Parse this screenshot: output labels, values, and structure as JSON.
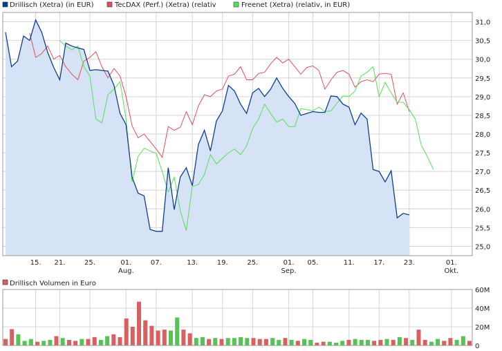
{
  "colors": {
    "drillisch": "#0b3d91",
    "drillisch_fill": "#d6e3f7",
    "tecdax": "#e0505a",
    "freenet": "#55e055",
    "vol_up": "#55c455",
    "vol_down": "#d86060",
    "grid": "#d4d4d4",
    "frame": "#999999"
  },
  "legend": {
    "drillisch": "Drillisch (Xetra) (in EUR)",
    "tecdax": "TecDAX (Perf.) (Xetra) (relativ",
    "freenet": "Freenet (Xetra) (relativ, in EUR)",
    "volume": "Drillisch Volumen in Euro"
  },
  "chart_data": [
    {
      "type": "line",
      "x_ticks": [
        "15.",
        "21.",
        "25.",
        "01.",
        "07.",
        "13.",
        "19.",
        "25.",
        "01.",
        "05.",
        "11.",
        "17.",
        "23.",
        "01."
      ],
      "x_tick_index": [
        5,
        9,
        14,
        20,
        25,
        31,
        36,
        41,
        47,
        51,
        57,
        62,
        67,
        74
      ],
      "month_labels": [
        {
          "label": "Aug.",
          "index": 20
        },
        {
          "label": "Sep.",
          "index": 47
        },
        {
          "label": "Okt.",
          "index": 74
        }
      ],
      "y_ticks": [
        "25,0",
        "25,5",
        "26,0",
        "26,5",
        "27,0",
        "27,5",
        "28,0",
        "28,5",
        "29,0",
        "29,5",
        "30,0",
        "30,5",
        "31,0"
      ],
      "y_tick_values": [
        25.0,
        25.5,
        26.0,
        26.5,
        27.0,
        27.5,
        28.0,
        28.5,
        29.0,
        29.5,
        30.0,
        30.5,
        31.0
      ],
      "ylim": [
        24.75,
        31.25
      ],
      "x_count": 78,
      "grid": true,
      "legend_position": "top",
      "series": [
        {
          "key": "drillisch",
          "name": "Drillisch (Xetra) (in EUR)",
          "values": [
            30.72,
            29.8,
            29.95,
            30.62,
            30.5,
            31.05,
            30.72,
            30.18,
            29.78,
            29.45,
            30.43,
            30.35,
            30.3,
            30.26,
            29.7,
            29.72,
            29.7,
            29.68,
            29.3,
            28.55,
            28.25,
            26.85,
            26.42,
            26.35,
            25.45,
            25.4,
            25.4,
            27.1,
            25.98,
            26.85,
            27.1,
            26.62,
            27.72,
            28.1,
            27.55,
            28.35,
            28.62,
            29.3,
            29.15,
            28.8,
            28.55,
            29.1,
            29.22,
            29.0,
            29.2,
            29.5,
            29.22,
            29.0,
            28.82,
            28.5,
            28.55,
            28.6,
            28.58,
            28.58,
            29.02,
            29.0,
            28.8,
            28.72,
            28.25,
            28.56,
            28.4,
            27.05,
            27.0,
            26.72,
            27.02,
            25.76,
            25.88,
            25.84
          ],
          "x_start": 0
        },
        {
          "key": "tecdax",
          "name": "TecDAX (Perf.) (Xetra) (relativ",
          "values": [
            30.7,
            30.05,
            30.15,
            30.35,
            30.0,
            30.1,
            29.8,
            29.6,
            29.45,
            29.95,
            30.05,
            30.2,
            29.8,
            29.5,
            29.75,
            29.55,
            29.0,
            28.22,
            27.9,
            28.0,
            27.8,
            27.6,
            27.38,
            28.2,
            28.1,
            28.18,
            28.6,
            28.25,
            28.75,
            29.05,
            29.0,
            29.15,
            29.2,
            29.55,
            29.6,
            29.8,
            29.45,
            29.45,
            29.62,
            29.65,
            29.88,
            30.05,
            29.9,
            30.0,
            29.8,
            29.6,
            29.78,
            29.82,
            29.7,
            29.2,
            29.45,
            29.65,
            29.7,
            29.6,
            29.25,
            29.4,
            29.45,
            29.4,
            29.6,
            29.62,
            29.6,
            28.8,
            29.1,
            28.6
          ],
          "x_start": 4
        },
        {
          "key": "freenet",
          "name": "Freenet (Xetra) (relativ, in EUR)",
          "values": [
            30.5,
            30.35,
            30.25,
            30.35,
            29.8,
            29.55,
            28.4,
            28.3,
            29.05,
            29.2,
            29.4,
            28.4,
            26.72,
            27.4,
            27.62,
            27.55,
            27.48,
            27.0,
            26.45,
            26.85,
            25.95,
            25.42,
            26.6,
            26.65,
            26.92,
            27.45,
            27.2,
            27.35,
            27.5,
            27.6,
            27.45,
            27.68,
            28.15,
            28.4,
            28.8,
            28.55,
            28.32,
            28.4,
            28.2,
            28.2,
            28.68,
            28.65,
            28.62,
            28.72,
            28.6,
            28.62,
            28.82,
            29.02,
            29.0,
            29.15,
            29.55,
            29.65,
            29.8,
            29.0,
            29.38,
            29.1,
            28.85,
            28.85,
            28.65,
            28.4,
            27.7,
            27.4,
            27.05
          ],
          "x_start": 9
        }
      ]
    },
    {
      "type": "bar",
      "title": "Drillisch Volumen in Euro",
      "y_ticks": [
        "0",
        "20M",
        "40M",
        "60M"
      ],
      "y_tick_values": [
        0,
        20000000,
        40000000,
        60000000
      ],
      "ylim": [
        0,
        60000000
      ],
      "values": [
        7000000,
        17500000,
        12000000,
        5000000,
        7000000,
        4000000,
        5000000,
        6000000,
        10000000,
        8000000,
        6000000,
        5000000,
        7000000,
        7000000,
        9000000,
        6000000,
        10000000,
        12000000,
        9000000,
        29000000,
        20000000,
        47000000,
        27000000,
        21000000,
        16000000,
        17000000,
        16000000,
        30000000,
        17000000,
        13000000,
        8000000,
        9000000,
        7000000,
        8000000,
        7000000,
        8000000,
        8000000,
        9000000,
        8000000,
        8000000,
        7000000,
        7000000,
        8000000,
        6000000,
        8000000,
        6000000,
        5000000,
        7000000,
        6000000,
        3000000,
        4000000,
        4000000,
        3000000,
        5000000,
        6000000,
        7000000,
        6000000,
        6000000,
        5000000,
        6000000,
        7000000,
        6000000,
        9000000,
        8000000,
        6000000,
        17000000,
        6000000,
        4000000,
        7000000,
        5000000,
        8000000,
        6000000,
        10000000,
        5000000
      ],
      "up": [
        false,
        false,
        true,
        true,
        true,
        false,
        true,
        true,
        false,
        true,
        false,
        false,
        true,
        false,
        false,
        true,
        true,
        false,
        false,
        false,
        false,
        false,
        false,
        false,
        false,
        false,
        true,
        true,
        false,
        false,
        true,
        true,
        false,
        true,
        false,
        true,
        true,
        true,
        true,
        false,
        false,
        false,
        true,
        true,
        false,
        true,
        false,
        true,
        true,
        false,
        false,
        true,
        true,
        true,
        false,
        true,
        true,
        true,
        false,
        false,
        true,
        false,
        true,
        false,
        true,
        false,
        false,
        true,
        true,
        false,
        false,
        true,
        true,
        false
      ]
    }
  ]
}
